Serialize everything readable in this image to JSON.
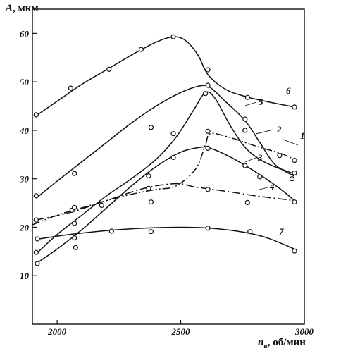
{
  "chart_data": {
    "type": "line",
    "ylabel_symbol": "A",
    "ylabel_unit": ", мкм",
    "xlabel_symbol": "n",
    "xlabel_subscript": "в",
    "xlabel_unit": ", об/мин",
    "xlim": [
      1900,
      3000
    ],
    "ylim": [
      0,
      65
    ],
    "x_ticks": [
      2000,
      2500,
      3000
    ],
    "y_ticks": [
      10,
      20,
      30,
      40,
      50,
      60
    ],
    "grid": false,
    "series": [
      {
        "name": "1",
        "style": "dash-dot-dot",
        "curve": [
          [
            1900,
            20.5
          ],
          [
            2000,
            22.5
          ],
          [
            2100,
            24
          ],
          [
            2200,
            25.5
          ],
          [
            2300,
            26.8
          ],
          [
            2400,
            27.8
          ],
          [
            2480,
            28.5
          ],
          [
            2560,
            32
          ],
          [
            2600,
            37
          ],
          [
            2620,
            39.3
          ],
          [
            2700,
            38.5
          ],
          [
            2800,
            36.8
          ],
          [
            2900,
            35.3
          ],
          [
            2960,
            34
          ]
        ],
        "points": [
          [
            1915,
            21.5
          ],
          [
            2060,
            23.5
          ],
          [
            2610,
            39.8
          ],
          [
            2900,
            34.8
          ],
          [
            2960,
            33.8
          ]
        ]
      },
      {
        "name": "2",
        "style": "solid",
        "curve": [
          [
            1915,
            14.5
          ],
          [
            2000,
            18.5
          ],
          [
            2100,
            22.5
          ],
          [
            2200,
            26.5
          ],
          [
            2300,
            30
          ],
          [
            2400,
            34
          ],
          [
            2480,
            38.5
          ],
          [
            2550,
            44
          ],
          [
            2600,
            47.8
          ],
          [
            2640,
            46.5
          ],
          [
            2700,
            41
          ],
          [
            2760,
            36.5
          ],
          [
            2820,
            34
          ],
          [
            2880,
            32.5
          ],
          [
            2960,
            31
          ]
        ],
        "points": [
          [
            1915,
            14.8
          ],
          [
            2070,
            20.8
          ],
          [
            2370,
            30.6
          ],
          [
            2600,
            47.6
          ],
          [
            2760,
            40
          ],
          [
            2960,
            31.2
          ]
        ]
      },
      {
        "name": "3",
        "style": "solid",
        "curve": [
          [
            1915,
            12.5
          ],
          [
            2000,
            15.5
          ],
          [
            2100,
            19.5
          ],
          [
            2200,
            24
          ],
          [
            2300,
            28.5
          ],
          [
            2400,
            32.5
          ],
          [
            2500,
            35.5
          ],
          [
            2580,
            36.5
          ],
          [
            2620,
            36.3
          ],
          [
            2700,
            34.5
          ],
          [
            2800,
            31.5
          ],
          [
            2900,
            28
          ],
          [
            2960,
            25.5
          ]
        ],
        "points": [
          [
            1920,
            12.5
          ],
          [
            2075,
            15.8
          ],
          [
            2370,
            28
          ],
          [
            2470,
            34.4
          ],
          [
            2610,
            36.3
          ],
          [
            2760,
            32.7
          ],
          [
            2820,
            30.4
          ],
          [
            2960,
            25.2
          ]
        ]
      },
      {
        "name": "4",
        "style": "dash-dot",
        "curve": [
          [
            1915,
            21.5
          ],
          [
            2050,
            23
          ],
          [
            2200,
            25.5
          ],
          [
            2350,
            28
          ],
          [
            2480,
            29
          ],
          [
            2560,
            28.3
          ],
          [
            2700,
            27.3
          ],
          [
            2800,
            26.5
          ],
          [
            2960,
            25.5
          ]
        ],
        "points": [
          [
            2070,
            24.1
          ],
          [
            2180,
            24.5
          ],
          [
            2380,
            25.2
          ],
          [
            2610,
            27.8
          ],
          [
            2770,
            25.1
          ]
        ]
      },
      {
        "name": "5",
        "style": "solid",
        "curve": [
          [
            1915,
            26
          ],
          [
            2000,
            29.5
          ],
          [
            2100,
            33.5
          ],
          [
            2200,
            37.5
          ],
          [
            2300,
            41.5
          ],
          [
            2400,
            45
          ],
          [
            2500,
            47.8
          ],
          [
            2580,
            49.2
          ],
          [
            2620,
            48.8
          ],
          [
            2680,
            46
          ],
          [
            2760,
            42
          ],
          [
            2820,
            37.5
          ],
          [
            2880,
            33
          ],
          [
            2960,
            30.5
          ]
        ],
        "points": [
          [
            1915,
            26.5
          ],
          [
            2070,
            31.1
          ],
          [
            2380,
            40.6
          ],
          [
            2470,
            39.3
          ],
          [
            2610,
            49.3
          ],
          [
            2760,
            42.3
          ],
          [
            2950,
            30
          ]
        ]
      },
      {
        "name": "6",
        "style": "solid",
        "curve": [
          [
            1915,
            43
          ],
          [
            2000,
            46
          ],
          [
            2100,
            49.5
          ],
          [
            2200,
            52.5
          ],
          [
            2300,
            55.5
          ],
          [
            2400,
            58.2
          ],
          [
            2470,
            59.3
          ],
          [
            2520,
            58.5
          ],
          [
            2570,
            55.5
          ],
          [
            2610,
            51.5
          ],
          [
            2680,
            48.5
          ],
          [
            2760,
            47
          ],
          [
            2860,
            45.8
          ],
          [
            2960,
            44.8
          ]
        ],
        "points": [
          [
            1915,
            43.2
          ],
          [
            2055,
            48.7
          ],
          [
            2210,
            52.6
          ],
          [
            2340,
            56.7
          ],
          [
            2470,
            59.3
          ],
          [
            2610,
            52.5
          ],
          [
            2770,
            46.8
          ],
          [
            2960,
            44.8
          ]
        ]
      },
      {
        "name": "7",
        "style": "solid",
        "curve": [
          [
            1915,
            17.5
          ],
          [
            2050,
            18.5
          ],
          [
            2200,
            19.3
          ],
          [
            2350,
            19.8
          ],
          [
            2500,
            20
          ],
          [
            2620,
            19.8
          ],
          [
            2750,
            19
          ],
          [
            2850,
            17.8
          ],
          [
            2960,
            15.5
          ]
        ],
        "points": [
          [
            1920,
            17.6
          ],
          [
            2070,
            17.8
          ],
          [
            2220,
            19.2
          ],
          [
            2380,
            19.1
          ],
          [
            2610,
            19.8
          ],
          [
            2780,
            19.1
          ],
          [
            2960,
            15.1
          ]
        ]
      }
    ]
  }
}
